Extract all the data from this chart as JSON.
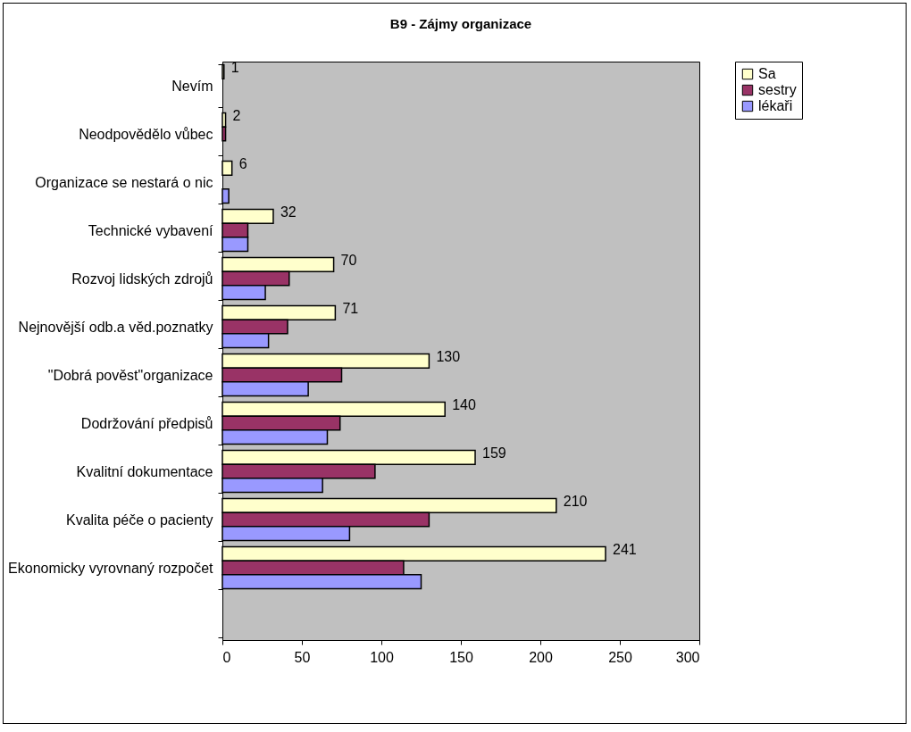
{
  "chart_data": {
    "type": "bar",
    "orientation": "horizontal",
    "title": "B9 - Zájmy organizace",
    "categories": [
      "Nevím",
      "Neodpovědělo vůbec",
      "Organizace se nestará o nic",
      "Technické vybavení",
      "Rozvoj lidských zdrojů",
      "Nejnovější odb.a věd.poznatky",
      "\"Dobrá pověst\"organizace",
      "Dodržování předpisů",
      "Kvalitní dokumentace",
      "Kvalita péče o pacienty",
      "Ekonomicky vyrovnaný rozpočet",
      null
    ],
    "series": [
      {
        "name": "Sa",
        "color": "#ffffcc",
        "values": [
          1,
          2,
          6,
          32,
          70,
          71,
          130,
          140,
          159,
          210,
          241,
          null
        ],
        "value_labels": [
          "1",
          "2",
          "6",
          "32",
          "70",
          "71",
          "130",
          "140",
          "159",
          "210",
          "241",
          null
        ]
      },
      {
        "name": "sestry",
        "color": "#993366",
        "values": [
          null,
          2,
          null,
          16,
          42,
          41,
          75,
          74,
          96,
          130,
          114,
          null
        ]
      },
      {
        "name": "lékaři",
        "color": "#9999ff",
        "values": [
          null,
          null,
          4,
          16,
          27,
          29,
          54,
          66,
          63,
          80,
          125,
          null
        ]
      }
    ],
    "xlim": [
      0,
      300
    ],
    "xticks": [
      0,
      50,
      100,
      150,
      200,
      250,
      300
    ],
    "grid": false,
    "legend": "right"
  }
}
